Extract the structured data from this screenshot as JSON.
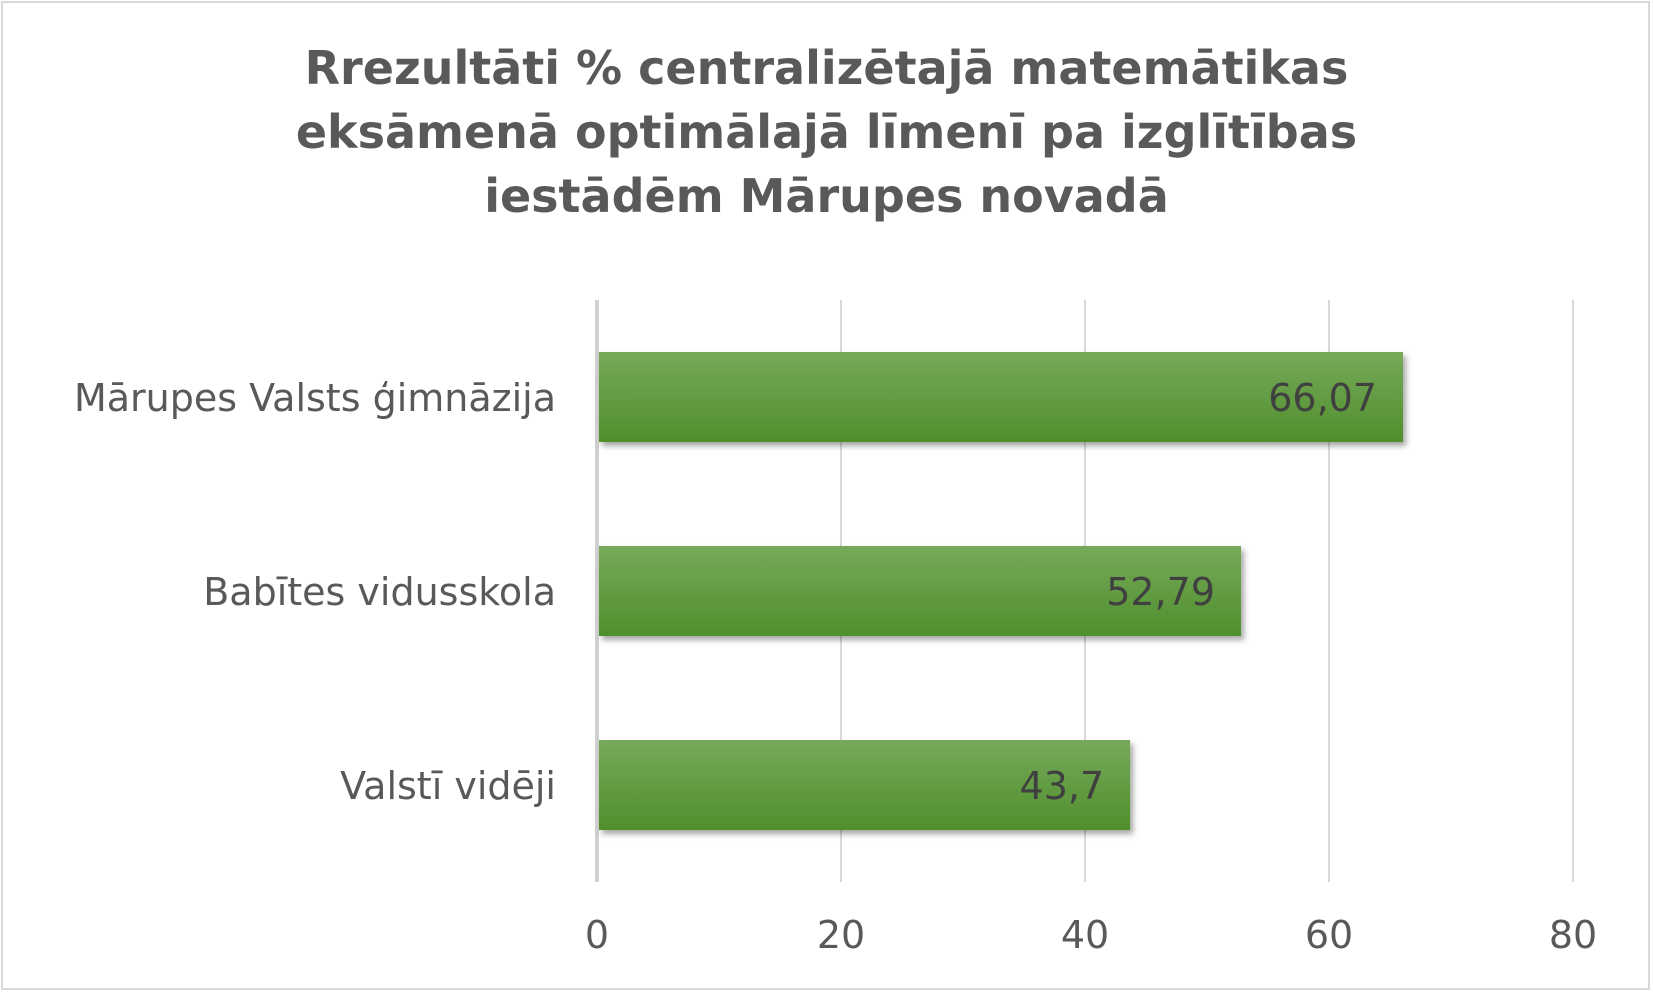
{
  "chart_data": {
    "type": "bar",
    "orientation": "horizontal",
    "title_lines": [
      "Rrezultāti % centralizētajā matemātikas",
      "eksāmenā optimālajā līmenī pa izglītības",
      "iestādēm Mārupes novadā"
    ],
    "categories": [
      "Mārupes Valsts ģimnāzija",
      "Babītes vidusskola",
      "Valstī vidēji"
    ],
    "values": [
      66.07,
      52.79,
      43.7
    ],
    "data_labels": [
      "66,07",
      "52,79",
      "43,7"
    ],
    "xlim": [
      0,
      80
    ],
    "xticks": [
      0,
      20,
      40,
      60,
      80
    ],
    "xtick_labels": [
      "0",
      "20",
      "40",
      "60",
      "80"
    ],
    "grid": "vertical",
    "legend": "none",
    "colors": {
      "bar_top": "#77a95a",
      "bar_bottom": "#4f8f2c",
      "grid": "#d9d9d9",
      "text": "#595959",
      "label_text": "#404040"
    }
  }
}
